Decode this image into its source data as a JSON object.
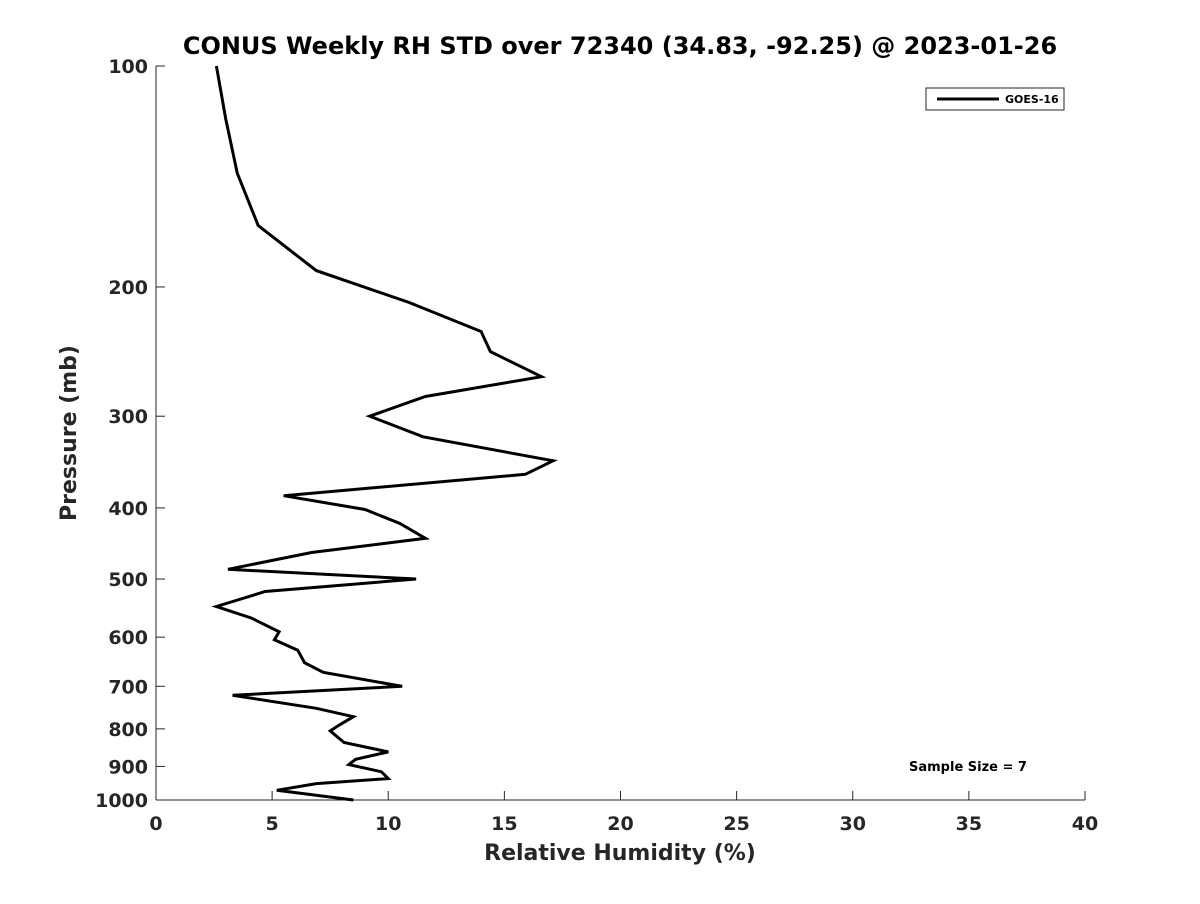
{
  "chart_data": {
    "type": "line",
    "title": "CONUS Weekly RH STD over 72340 (34.83, -92.25) @ 2023-01-26",
    "xlabel": "Relative Humidity (%)",
    "ylabel": "Pressure (mb)",
    "xlim": [
      0,
      40
    ],
    "ylim": [
      100,
      1000
    ],
    "y_scale": "log",
    "y_reversed": true,
    "xticks": [
      0,
      5,
      10,
      15,
      20,
      25,
      30,
      35,
      40
    ],
    "yticks": [
      100,
      200,
      300,
      400,
      500,
      600,
      700,
      800,
      900,
      1000
    ],
    "grid": false,
    "legend_position": "top-right",
    "annotation": "Sample Size = 7",
    "series": [
      {
        "name": "GOES-16",
        "color": "#000000",
        "x": [
          2.6,
          3.0,
          3.5,
          4.4,
          6.9,
          10.9,
          14.0,
          14.4,
          16.6,
          11.6,
          9.2,
          11.5,
          17.1,
          15.9,
          5.5,
          9.0,
          10.5,
          11.6,
          6.7,
          3.1,
          11.2,
          4.7,
          2.6,
          4.1,
          5.3,
          5.1,
          6.1,
          6.4,
          7.2,
          10.6,
          3.3,
          6.9,
          8.5,
          7.9,
          7.5,
          8.1,
          10.0,
          8.6,
          8.3,
          9.7,
          10.0,
          6.9,
          5.2,
          8.5
        ],
        "y": [
          100,
          118,
          140,
          165,
          190,
          210,
          230,
          245,
          265,
          282,
          300,
          320,
          345,
          360,
          385,
          402,
          420,
          440,
          460,
          485,
          500,
          520,
          545,
          565,
          590,
          605,
          625,
          650,
          670,
          700,
          720,
          750,
          770,
          790,
          805,
          835,
          860,
          880,
          895,
          915,
          935,
          950,
          970,
          1000
        ]
      }
    ]
  }
}
